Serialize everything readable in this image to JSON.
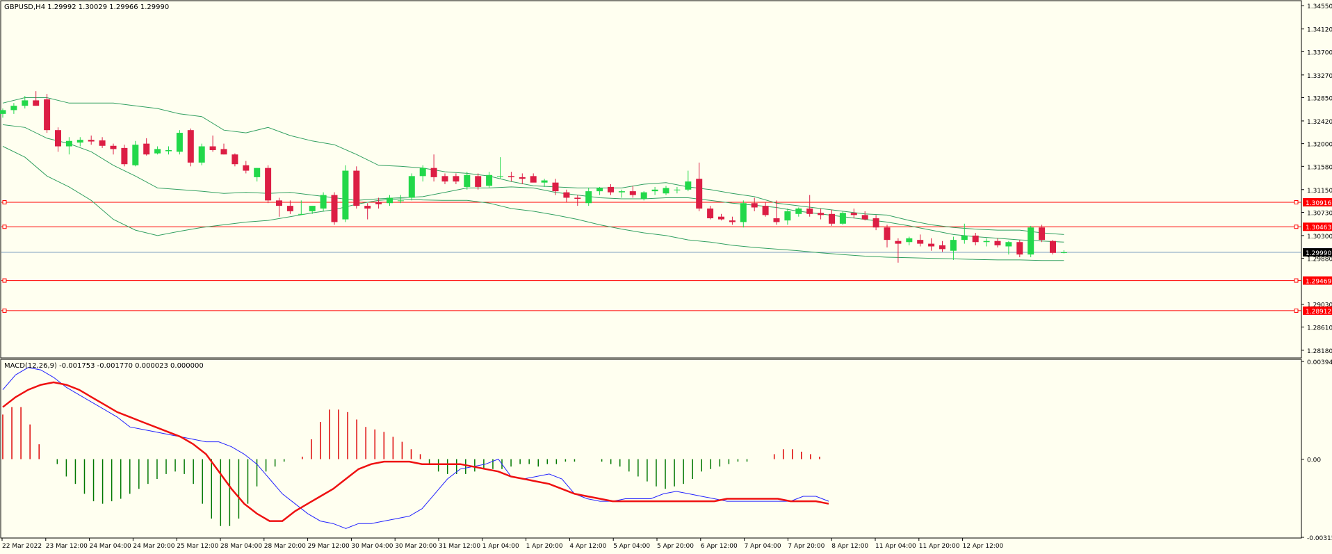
{
  "main_header": "GBPUSD,H4  1.29992 1.30029 1.29966 1.29990",
  "macd_header": "MACD(12,26,9) -0.001753 -0.001770 0.000023 0.000000",
  "colors": {
    "background": "#fffff0",
    "bull": "#22d84a",
    "bear": "#dc1e44",
    "bands": "#32a060",
    "level": "#ff0000",
    "bid": "#7f9fc0",
    "macd_line": "#2222ff",
    "signal_line": "#ee1111",
    "hist_pos": "#dd0000",
    "hist_neg": "#007700"
  },
  "price_axis": {
    "ticks": [
      "1.34550",
      "1.34120",
      "1.33700",
      "1.33270",
      "1.32850",
      "1.32420",
      "1.32000",
      "1.31580",
      "1.31150",
      "1.30730",
      "1.30300",
      "1.29880",
      "1.29030",
      "1.28610",
      "1.28180"
    ]
  },
  "levels": [
    {
      "label": "1.30916",
      "price": 1.30916
    },
    {
      "label": "1.30463",
      "price": 1.30463
    },
    {
      "label": "1.29469",
      "price": 1.29469
    },
    {
      "label": "1.28912",
      "price": 1.28912
    }
  ],
  "bid": {
    "label": "1.29990",
    "price": 1.2999
  },
  "macd_axis": {
    "ticks": [
      "0.003943",
      "0.00",
      "-0.003156"
    ]
  },
  "time_axis": {
    "labels": [
      "22 Mar 2022",
      "23 Mar 12:00",
      "24 Mar 04:00",
      "24 Mar 20:00",
      "25 Mar 12:00",
      "28 Mar 04:00",
      "28 Mar 20:00",
      "29 Mar 12:00",
      "30 Mar 04:00",
      "30 Mar 20:00",
      "31 Mar 12:00",
      "1 Apr 04:00",
      "1 Apr 20:00",
      "4 Apr 12:00",
      "5 Apr 04:00",
      "5 Apr 20:00",
      "6 Apr 12:00",
      "7 Apr 04:00",
      "7 Apr 20:00",
      "8 Apr 12:00",
      "11 Apr 04:00",
      "11 Apr 20:00",
      "12 Apr 12:00"
    ]
  },
  "chart_data": {
    "type": "candlestick",
    "symbol": "GBPUSD",
    "timeframe": "H4",
    "ylim": [
      1.2805,
      1.3463
    ],
    "candles": [
      {
        "o": 1.3255,
        "h": 1.3265,
        "l": 1.3248,
        "c": 1.3262
      },
      {
        "o": 1.3262,
        "h": 1.3275,
        "l": 1.3255,
        "c": 1.327
      },
      {
        "o": 1.327,
        "h": 1.3288,
        "l": 1.3265,
        "c": 1.328
      },
      {
        "o": 1.328,
        "h": 1.3297,
        "l": 1.327,
        "c": 1.327
      },
      {
        "o": 1.3282,
        "h": 1.3292,
        "l": 1.322,
        "c": 1.3225
      },
      {
        "o": 1.3225,
        "h": 1.323,
        "l": 1.3185,
        "c": 1.3195
      },
      {
        "o": 1.3195,
        "h": 1.3212,
        "l": 1.318,
        "c": 1.3205
      },
      {
        "o": 1.3202,
        "h": 1.3212,
        "l": 1.3195,
        "c": 1.3207
      },
      {
        "o": 1.3207,
        "h": 1.3215,
        "l": 1.3198,
        "c": 1.3204
      },
      {
        "o": 1.3206,
        "h": 1.3212,
        "l": 1.3192,
        "c": 1.3196
      },
      {
        "o": 1.3196,
        "h": 1.32,
        "l": 1.318,
        "c": 1.319
      },
      {
        "o": 1.3192,
        "h": 1.3198,
        "l": 1.3158,
        "c": 1.3162
      },
      {
        "o": 1.316,
        "h": 1.3205,
        "l": 1.3158,
        "c": 1.3198
      },
      {
        "o": 1.32,
        "h": 1.321,
        "l": 1.3178,
        "c": 1.318
      },
      {
        "o": 1.3182,
        "h": 1.3195,
        "l": 1.318,
        "c": 1.319
      },
      {
        "o": 1.3186,
        "h": 1.3195,
        "l": 1.318,
        "c": 1.3188
      },
      {
        "o": 1.3185,
        "h": 1.3225,
        "l": 1.318,
        "c": 1.322
      },
      {
        "o": 1.3225,
        "h": 1.3228,
        "l": 1.3158,
        "c": 1.3165
      },
      {
        "o": 1.3165,
        "h": 1.32,
        "l": 1.316,
        "c": 1.3195
      },
      {
        "o": 1.3195,
        "h": 1.3215,
        "l": 1.3185,
        "c": 1.3188
      },
      {
        "o": 1.319,
        "h": 1.32,
        "l": 1.318,
        "c": 1.318
      },
      {
        "o": 1.318,
        "h": 1.3182,
        "l": 1.3158,
        "c": 1.3162
      },
      {
        "o": 1.316,
        "h": 1.3168,
        "l": 1.3145,
        "c": 1.315
      },
      {
        "o": 1.3138,
        "h": 1.3155,
        "l": 1.313,
        "c": 1.3155
      },
      {
        "o": 1.3155,
        "h": 1.316,
        "l": 1.309,
        "c": 1.3095
      },
      {
        "o": 1.3095,
        "h": 1.31,
        "l": 1.3065,
        "c": 1.3085
      },
      {
        "o": 1.3085,
        "h": 1.3095,
        "l": 1.307,
        "c": 1.3075
      },
      {
        "o": 1.307,
        "h": 1.3095,
        "l": 1.3068,
        "c": 1.307
      },
      {
        "o": 1.3075,
        "h": 1.3085,
        "l": 1.307,
        "c": 1.3085
      },
      {
        "o": 1.308,
        "h": 1.311,
        "l": 1.3075,
        "c": 1.3105
      },
      {
        "o": 1.3105,
        "h": 1.311,
        "l": 1.305,
        "c": 1.3055
      },
      {
        "o": 1.306,
        "h": 1.316,
        "l": 1.3055,
        "c": 1.315
      },
      {
        "o": 1.315,
        "h": 1.3158,
        "l": 1.308,
        "c": 1.3085
      },
      {
        "o": 1.3085,
        "h": 1.309,
        "l": 1.306,
        "c": 1.308
      },
      {
        "o": 1.3092,
        "h": 1.31,
        "l": 1.308,
        "c": 1.3088
      },
      {
        "o": 1.309,
        "h": 1.3105,
        "l": 1.3085,
        "c": 1.31
      },
      {
        "o": 1.3095,
        "h": 1.3105,
        "l": 1.309,
        "c": 1.3095
      },
      {
        "o": 1.31,
        "h": 1.3145,
        "l": 1.3095,
        "c": 1.314
      },
      {
        "o": 1.314,
        "h": 1.316,
        "l": 1.313,
        "c": 1.3155
      },
      {
        "o": 1.3155,
        "h": 1.318,
        "l": 1.313,
        "c": 1.3138
      },
      {
        "o": 1.314,
        "h": 1.3145,
        "l": 1.3125,
        "c": 1.313
      },
      {
        "o": 1.314,
        "h": 1.3145,
        "l": 1.3125,
        "c": 1.313
      },
      {
        "o": 1.312,
        "h": 1.3148,
        "l": 1.3115,
        "c": 1.3142
      },
      {
        "o": 1.314,
        "h": 1.3145,
        "l": 1.3115,
        "c": 1.312
      },
      {
        "o": 1.3122,
        "h": 1.3148,
        "l": 1.3118,
        "c": 1.3142
      },
      {
        "o": 1.314,
        "h": 1.3175,
        "l": 1.3135,
        "c": 1.314
      },
      {
        "o": 1.314,
        "h": 1.3148,
        "l": 1.313,
        "c": 1.3138
      },
      {
        "o": 1.3138,
        "h": 1.3145,
        "l": 1.3125,
        "c": 1.3135
      },
      {
        "o": 1.314,
        "h": 1.3145,
        "l": 1.313,
        "c": 1.3128
      },
      {
        "o": 1.3128,
        "h": 1.3135,
        "l": 1.312,
        "c": 1.3132
      },
      {
        "o": 1.3128,
        "h": 1.3135,
        "l": 1.3105,
        "c": 1.3112
      },
      {
        "o": 1.311,
        "h": 1.3115,
        "l": 1.3092,
        "c": 1.31
      },
      {
        "o": 1.31,
        "h": 1.3105,
        "l": 1.3085,
        "c": 1.3098
      },
      {
        "o": 1.309,
        "h": 1.3118,
        "l": 1.3085,
        "c": 1.3112
      },
      {
        "o": 1.3112,
        "h": 1.312,
        "l": 1.3105,
        "c": 1.3118
      },
      {
        "o": 1.312,
        "h": 1.3125,
        "l": 1.3105,
        "c": 1.311
      },
      {
        "o": 1.311,
        "h": 1.3115,
        "l": 1.31,
        "c": 1.3112
      },
      {
        "o": 1.3112,
        "h": 1.3122,
        "l": 1.31,
        "c": 1.3105
      },
      {
        "o": 1.3098,
        "h": 1.3112,
        "l": 1.3095,
        "c": 1.311
      },
      {
        "o": 1.3112,
        "h": 1.312,
        "l": 1.3105,
        "c": 1.3115
      },
      {
        "o": 1.3108,
        "h": 1.3122,
        "l": 1.3105,
        "c": 1.3118
      },
      {
        "o": 1.3115,
        "h": 1.312,
        "l": 1.3108,
        "c": 1.3115
      },
      {
        "o": 1.3115,
        "h": 1.315,
        "l": 1.3112,
        "c": 1.313
      },
      {
        "o": 1.3135,
        "h": 1.3165,
        "l": 1.3075,
        "c": 1.308
      },
      {
        "o": 1.308,
        "h": 1.3085,
        "l": 1.306,
        "c": 1.3062
      },
      {
        "o": 1.3065,
        "h": 1.307,
        "l": 1.3058,
        "c": 1.306
      },
      {
        "o": 1.3058,
        "h": 1.3065,
        "l": 1.305,
        "c": 1.3055
      },
      {
        "o": 1.3055,
        "h": 1.3095,
        "l": 1.3045,
        "c": 1.309
      },
      {
        "o": 1.309,
        "h": 1.31,
        "l": 1.3075,
        "c": 1.3082
      },
      {
        "o": 1.3085,
        "h": 1.3092,
        "l": 1.3065,
        "c": 1.3068
      },
      {
        "o": 1.3062,
        "h": 1.3095,
        "l": 1.305,
        "c": 1.3055
      },
      {
        "o": 1.3058,
        "h": 1.308,
        "l": 1.305,
        "c": 1.3075
      },
      {
        "o": 1.307,
        "h": 1.3082,
        "l": 1.3065,
        "c": 1.308
      },
      {
        "o": 1.308,
        "h": 1.3105,
        "l": 1.3065,
        "c": 1.307
      },
      {
        "o": 1.3072,
        "h": 1.308,
        "l": 1.306,
        "c": 1.3068
      },
      {
        "o": 1.307,
        "h": 1.3078,
        "l": 1.3048,
        "c": 1.3052
      },
      {
        "o": 1.3052,
        "h": 1.3075,
        "l": 1.305,
        "c": 1.3072
      },
      {
        "o": 1.3072,
        "h": 1.308,
        "l": 1.3062,
        "c": 1.3068
      },
      {
        "o": 1.3068,
        "h": 1.3075,
        "l": 1.3058,
        "c": 1.306
      },
      {
        "o": 1.3062,
        "h": 1.3068,
        "l": 1.304,
        "c": 1.3045
      },
      {
        "o": 1.3045,
        "h": 1.305,
        "l": 1.3008,
        "c": 1.3022
      },
      {
        "o": 1.302,
        "h": 1.3025,
        "l": 1.298,
        "c": 1.3015
      },
      {
        "o": 1.3018,
        "h": 1.3028,
        "l": 1.3012,
        "c": 1.3025
      },
      {
        "o": 1.3022,
        "h": 1.3032,
        "l": 1.301,
        "c": 1.3015
      },
      {
        "o": 1.3015,
        "h": 1.3025,
        "l": 1.3002,
        "c": 1.301
      },
      {
        "o": 1.3012,
        "h": 1.302,
        "l": 1.3,
        "c": 1.3005
      },
      {
        "o": 1.3002,
        "h": 1.3028,
        "l": 1.2985,
        "c": 1.3022
      },
      {
        "o": 1.3022,
        "h": 1.3052,
        "l": 1.3015,
        "c": 1.303
      },
      {
        "o": 1.303,
        "h": 1.3035,
        "l": 1.3012,
        "c": 1.3018
      },
      {
        "o": 1.3018,
        "h": 1.3025,
        "l": 1.301,
        "c": 1.302
      },
      {
        "o": 1.302,
        "h": 1.3025,
        "l": 1.3008,
        "c": 1.3012
      },
      {
        "o": 1.301,
        "h": 1.302,
        "l": 1.2995,
        "c": 1.3018
      },
      {
        "o": 1.3018,
        "h": 1.3022,
        "l": 1.299,
        "c": 1.2995
      },
      {
        "o": 1.2995,
        "h": 1.3048,
        "l": 1.299,
        "c": 1.3045
      },
      {
        "o": 1.3045,
        "h": 1.305,
        "l": 1.3018,
        "c": 1.3022
      },
      {
        "o": 1.302,
        "h": 1.3022,
        "l": 1.2995,
        "c": 1.2998
      },
      {
        "o": 1.2999,
        "h": 1.3003,
        "l": 1.2997,
        "c": 1.2999
      }
    ],
    "bollinger_upper": [
      1.3275,
      1.3285,
      1.3285,
      1.3275,
      1.3275,
      1.3275,
      1.327,
      1.3265,
      1.3255,
      1.325,
      1.3225,
      1.322,
      1.323,
      1.3215,
      1.3205,
      1.3198,
      1.318,
      1.316,
      1.3158,
      1.3155,
      1.3148,
      1.3145,
      1.314,
      1.313,
      1.3122,
      1.312,
      1.3118,
      1.3118,
      1.3118,
      1.3125,
      1.3128,
      1.312,
      1.3115,
      1.3108,
      1.3102,
      1.309,
      1.3085,
      1.308,
      1.3075,
      1.307,
      1.3068,
      1.3058,
      1.305,
      1.3045,
      1.3042,
      1.304,
      1.304,
      1.3035,
      1.3032
    ],
    "bollinger_middle": [
      1.3235,
      1.323,
      1.321,
      1.32,
      1.3185,
      1.316,
      1.314,
      1.3118,
      1.3115,
      1.3112,
      1.3108,
      1.311,
      1.3108,
      1.311,
      1.3105,
      1.31,
      1.3095,
      1.3098,
      1.31,
      1.3102,
      1.311,
      1.3118,
      1.3118,
      1.312,
      1.3118,
      1.311,
      1.3105,
      1.31,
      1.3098,
      1.3098,
      1.31,
      1.31,
      1.3095,
      1.309,
      1.3086,
      1.3082,
      1.3075,
      1.307,
      1.3065,
      1.306,
      1.3055,
      1.3048,
      1.304,
      1.3032,
      1.3028,
      1.3025,
      1.3022,
      1.302,
      1.3018
    ],
    "bollinger_lower": [
      1.3195,
      1.3175,
      1.314,
      1.312,
      1.3095,
      1.306,
      1.304,
      1.303,
      1.3038,
      1.3045,
      1.305,
      1.3055,
      1.3058,
      1.3065,
      1.3072,
      1.3078,
      1.3088,
      1.3095,
      1.3098,
      1.3096,
      1.3095,
      1.3095,
      1.309,
      1.308,
      1.3075,
      1.3068,
      1.306,
      1.305,
      1.3042,
      1.3035,
      1.303,
      1.3022,
      1.3018,
      1.3012,
      1.3008,
      1.3005,
      1.3002,
      1.2998,
      1.2995,
      1.2992,
      1.299,
      1.2989,
      1.2988,
      1.2987,
      1.2986,
      1.2985,
      1.2985,
      1.2984,
      1.2984
    ],
    "macd": {
      "ylim": [
        -0.003156,
        0.003943
      ],
      "main": [
        0.0028,
        0.0034,
        0.0037,
        0.0036,
        0.0033,
        0.0029,
        0.0026,
        0.0023,
        0.002,
        0.0017,
        0.0013,
        0.0012,
        0.0011,
        0.001,
        0.0009,
        0.0008,
        0.0007,
        0.0007,
        0.0005,
        0.0002,
        -0.0002,
        -0.0008,
        -0.0014,
        -0.0018,
        -0.0022,
        -0.0025,
        -0.0026,
        -0.0028,
        -0.0026,
        -0.0026,
        -0.0025,
        -0.0024,
        -0.0023,
        -0.002,
        -0.0014,
        -0.0008,
        -0.0004,
        -0.0003,
        -0.0002,
        0.0,
        -0.0007,
        -0.0008,
        -0.0007,
        -0.0006,
        -0.0008,
        -0.0014,
        -0.0016,
        -0.0017,
        -0.0017,
        -0.0016,
        -0.0016,
        -0.0016,
        -0.0014,
        -0.0013,
        -0.0014,
        -0.0015,
        -0.0016,
        -0.0017,
        -0.0017,
        -0.0017,
        -0.0017,
        -0.0017,
        -0.0017,
        -0.0015,
        -0.0015,
        -0.0017
      ],
      "signal": [
        0.0021,
        0.0025,
        0.0028,
        0.003,
        0.0031,
        0.003,
        0.0028,
        0.0025,
        0.0022,
        0.0019,
        0.0017,
        0.0015,
        0.0013,
        0.0011,
        0.0009,
        0.0006,
        0.0002,
        -0.0005,
        -0.0012,
        -0.0018,
        -0.0022,
        -0.0025,
        -0.0025,
        -0.0021,
        -0.0018,
        -0.0015,
        -0.0012,
        -0.0008,
        -0.0004,
        -0.0002,
        -0.0001,
        -0.0001,
        -0.0001,
        -0.0002,
        -0.0002,
        -0.0002,
        -0.0002,
        -0.0003,
        -0.0004,
        -0.0005,
        -0.0007,
        -0.0008,
        -0.0009,
        -0.001,
        -0.0012,
        -0.0014,
        -0.0015,
        -0.0016,
        -0.0017,
        -0.0017,
        -0.0017,
        -0.0017,
        -0.0017,
        -0.0017,
        -0.0017,
        -0.0017,
        -0.0017,
        -0.0016,
        -0.0016,
        -0.0016,
        -0.0016,
        -0.0016,
        -0.0017,
        -0.0017,
        -0.0017,
        -0.0018
      ],
      "histogram": [
        0.0018,
        0.0021,
        0.0021,
        0.0014,
        0.0006,
        0.0,
        -0.0002,
        -0.0007,
        -0.001,
        -0.0014,
        -0.0017,
        -0.0018,
        -0.0017,
        -0.0016,
        -0.0014,
        -0.0012,
        -0.001,
        -0.0008,
        -0.0006,
        -0.0005,
        -0.0006,
        -0.001,
        -0.0018,
        -0.0024,
        -0.0027,
        -0.0027,
        -0.0024,
        -0.0018,
        -0.0011,
        -0.0005,
        -0.0003,
        -0.0001,
        0.0,
        0.0001,
        0.0008,
        0.0015,
        0.002,
        0.002,
        0.0019,
        0.0016,
        0.0013,
        0.0012,
        0.0011,
        0.0009,
        0.0007,
        0.0004,
        0.0002,
        -0.0002,
        -0.0005,
        -0.0006,
        -0.0006,
        -0.0006,
        -0.0005,
        -0.0004,
        -0.0004,
        -0.0004,
        -0.0003,
        -0.0002,
        -0.0002,
        -0.0003,
        -0.0002,
        -0.0002,
        -0.0001,
        -0.0001,
        0.0,
        0.0,
        -0.0001,
        -0.0002,
        -0.0003,
        -0.0005,
        -0.0007,
        -0.0009,
        -0.0011,
        -0.0012,
        -0.0011,
        -0.001,
        -0.0008,
        -0.0005,
        -0.0004,
        -0.0003,
        -0.0002,
        -0.0001,
        -0.0001,
        0.0,
        0.0,
        0.0002,
        0.0004,
        0.0004,
        0.0003,
        0.0002,
        0.0001,
        0.0
      ]
    }
  }
}
